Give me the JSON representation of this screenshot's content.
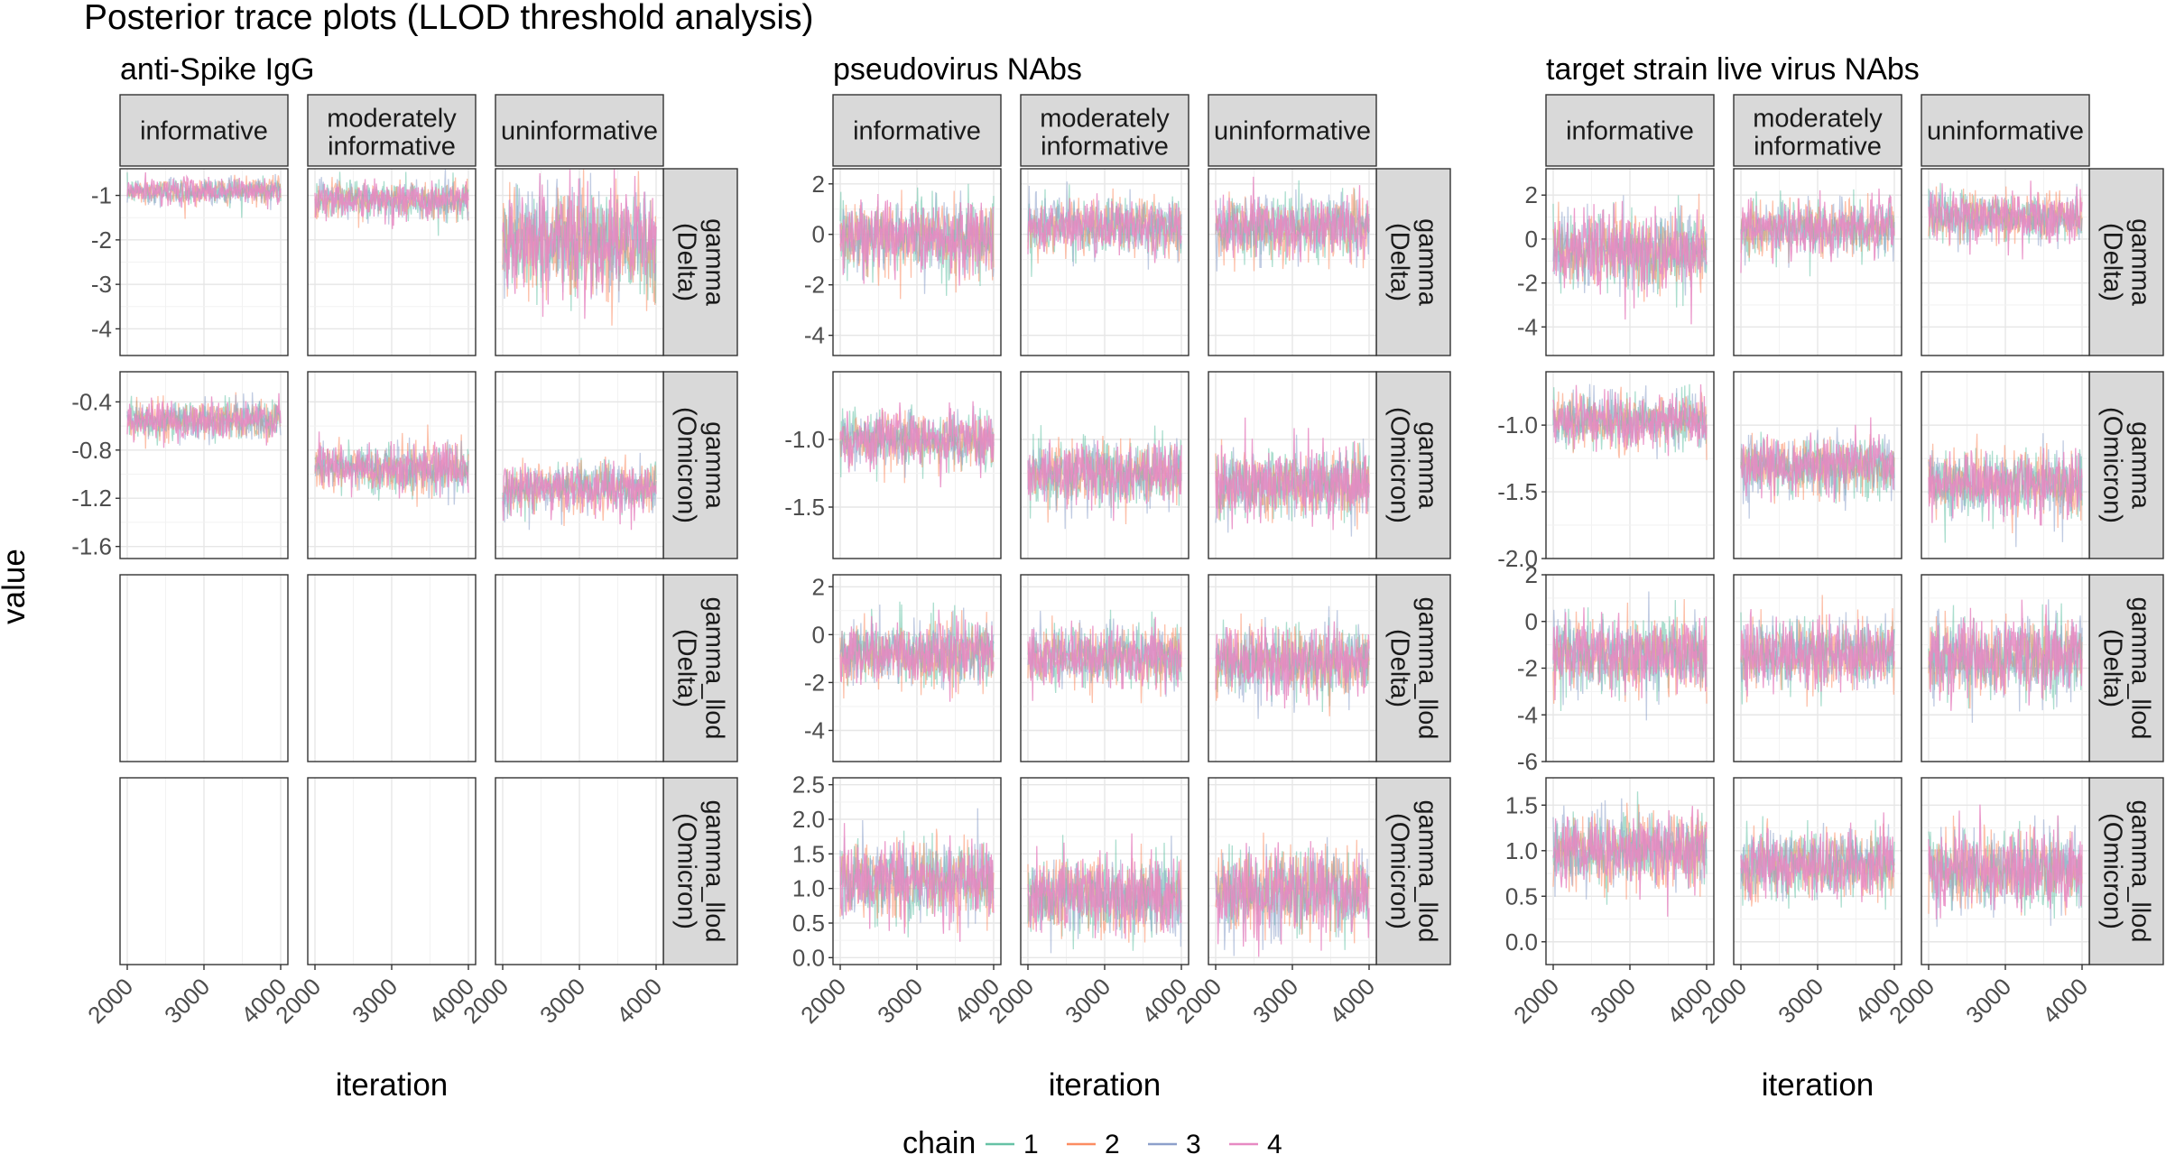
{
  "chart_data": {
    "type": "line",
    "title": "Posterior trace plots (LLOD threshold analysis)",
    "ylabel": "value",
    "xlabel": "iteration",
    "x_range": [
      2000,
      4000
    ],
    "x_ticks": [
      2000,
      3000,
      4000
    ],
    "x_tick_labels": [
      "2000",
      "3000",
      "4000"
    ],
    "columns": [
      {
        "label": "informative",
        "label_lines": [
          "informative"
        ]
      },
      {
        "label": "moderately informative",
        "label_lines": [
          "moderately",
          "informative"
        ]
      },
      {
        "label": "uninformative",
        "label_lines": [
          "uninformative"
        ]
      }
    ],
    "rows": [
      {
        "label": "gamma (Delta)",
        "label_lines": [
          "gamma",
          "(Delta)"
        ]
      },
      {
        "label": "gamma (Omicron)",
        "label_lines": [
          "gamma",
          "(Omicron)"
        ]
      },
      {
        "label": "gamma_llod (Delta)",
        "label_lines": [
          "gamma_llod",
          "(Delta)"
        ]
      },
      {
        "label": "gamma_llod (Omicron)",
        "label_lines": [
          "gamma_llod",
          "(Omicron)"
        ]
      }
    ],
    "legend": {
      "title": "chain",
      "position": "bottom",
      "entries": [
        {
          "label": "1",
          "color": "#66c2a5"
        },
        {
          "label": "2",
          "color": "#fc8d62"
        },
        {
          "label": "3",
          "color": "#8da0cb"
        },
        {
          "label": "4",
          "color": "#e78ac3"
        }
      ]
    },
    "groups": [
      {
        "title": "anti-Spike IgG",
        "panels": [
          {
            "ylim": [
              -4.6,
              -0.4
            ],
            "yticks": [
              -1,
              -2,
              -3,
              -4
            ],
            "ytick_labels": [
              "-1",
              "-2",
              "-3",
              "-4"
            ],
            "series": [
              {
                "center": -0.9,
                "spread": 0.3
              },
              {
                "center": -1.1,
                "spread": 0.42
              },
              {
                "center": -2.0,
                "spread": 1.2
              }
            ]
          },
          {
            "ylim": [
              -1.7,
              -0.15
            ],
            "yticks": [
              -0.4,
              -0.8,
              -1.2,
              -1.6
            ],
            "ytick_labels": [
              "-0.4",
              "-0.8",
              "-1.2",
              "-1.6"
            ],
            "series": [
              {
                "center": -0.55,
                "spread": 0.16
              },
              {
                "center": -0.95,
                "spread": 0.2
              },
              {
                "center": -1.12,
                "spread": 0.2
              }
            ]
          },
          {
            "empty": true,
            "ylim": [
              0,
              1
            ],
            "yticks": [],
            "ytick_labels": []
          },
          {
            "empty": true,
            "ylim": [
              0,
              1
            ],
            "yticks": [],
            "ytick_labels": []
          }
        ]
      },
      {
        "title": "pseudovirus NAbs",
        "panels": [
          {
            "ylim": [
              -4.8,
              2.6
            ],
            "yticks": [
              2,
              0,
              -2,
              -4
            ],
            "ytick_labels": [
              "2",
              "0",
              "-2",
              "-4"
            ],
            "series": [
              {
                "center": -0.1,
                "spread": 1.4
              },
              {
                "center": 0.3,
                "spread": 1.1
              },
              {
                "center": 0.3,
                "spread": 1.2
              }
            ]
          },
          {
            "ylim": [
              -1.88,
              -0.5
            ],
            "yticks": [
              -1.0,
              -1.5
            ],
            "ytick_labels": [
              "-1.0",
              "-1.5"
            ],
            "series": [
              {
                "center": -1.0,
                "spread": 0.2
              },
              {
                "center": -1.25,
                "spread": 0.24
              },
              {
                "center": -1.33,
                "spread": 0.26
              }
            ]
          },
          {
            "ylim": [
              -5.3,
              2.5
            ],
            "yticks": [
              2,
              0,
              -2,
              -4
            ],
            "ytick_labels": [
              "2",
              "0",
              "-2",
              "-4"
            ],
            "series": [
              {
                "center": -0.8,
                "spread": 1.3
              },
              {
                "center": -0.9,
                "spread": 1.2
              },
              {
                "center": -1.1,
                "spread": 1.5
              }
            ]
          },
          {
            "ylim": [
              -0.1,
              2.6
            ],
            "yticks": [
              2.5,
              2.0,
              1.5,
              1.0,
              0.5,
              0.0
            ],
            "ytick_labels": [
              "2.5",
              "2.0",
              "1.5",
              "1.0",
              "0.5",
              "0.0"
            ],
            "series": [
              {
                "center": 1.1,
                "spread": 0.55
              },
              {
                "center": 0.9,
                "spread": 0.55
              },
              {
                "center": 0.95,
                "spread": 0.6
              }
            ]
          }
        ]
      },
      {
        "title": "target strain live virus NAbs",
        "panels": [
          {
            "ylim": [
              -5.3,
              3.2
            ],
            "yticks": [
              2,
              0,
              -2,
              -4
            ],
            "ytick_labels": [
              "2",
              "0",
              "-2",
              "-4"
            ],
            "series": [
              {
                "center": -0.5,
                "spread": 1.7
              },
              {
                "center": 0.5,
                "spread": 1.2
              },
              {
                "center": 1.0,
                "spread": 1.1
              }
            ]
          },
          {
            "ylim": [
              -2.0,
              -0.6
            ],
            "yticks": [
              -1.0,
              -1.5,
              -2.0
            ],
            "ytick_labels": [
              "-1.0",
              "-1.5",
              "-2.0"
            ],
            "series": [
              {
                "center": -0.97,
                "spread": 0.2
              },
              {
                "center": -1.3,
                "spread": 0.22
              },
              {
                "center": -1.45,
                "spread": 0.25
              }
            ]
          },
          {
            "ylim": [
              -6.0,
              2.0
            ],
            "yticks": [
              2,
              0,
              -2,
              -4,
              -6
            ],
            "ytick_labels": [
              "2",
              "0",
              "-2",
              "-4",
              "-6"
            ],
            "series": [
              {
                "center": -1.4,
                "spread": 1.6
              },
              {
                "center": -1.4,
                "spread": 1.5
              },
              {
                "center": -1.5,
                "spread": 1.6
              }
            ]
          },
          {
            "ylim": [
              -0.25,
              1.8
            ],
            "yticks": [
              1.5,
              1.0,
              0.5,
              0.0
            ],
            "ytick_labels": [
              "1.5",
              "1.0",
              "0.5",
              "0.0"
            ],
            "series": [
              {
                "center": 1.0,
                "spread": 0.4
              },
              {
                "center": 0.85,
                "spread": 0.38
              },
              {
                "center": 0.8,
                "spread": 0.42
              }
            ]
          }
        ]
      }
    ]
  }
}
